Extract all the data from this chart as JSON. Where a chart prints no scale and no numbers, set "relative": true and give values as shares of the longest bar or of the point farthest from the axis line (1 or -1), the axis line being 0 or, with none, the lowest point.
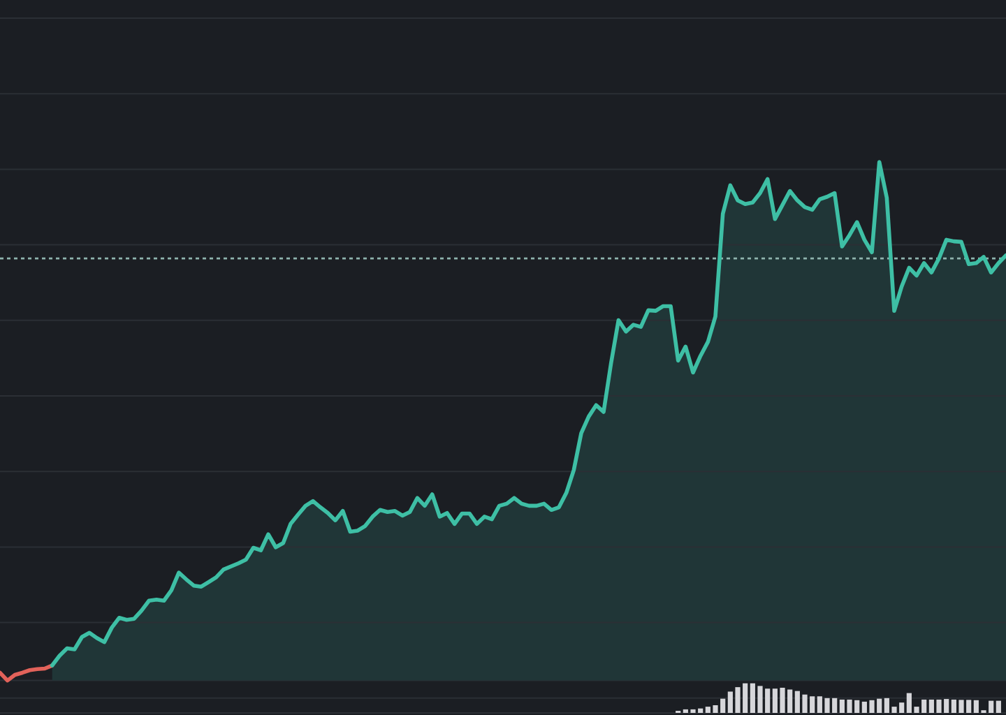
{
  "chart_data": [
    {
      "type": "line",
      "relative": true,
      "grid": "y",
      "categories": [
        null,
        null,
        null,
        null,
        null,
        null,
        null,
        null,
        null,
        null,
        null,
        null,
        null,
        null,
        null,
        null,
        null,
        null,
        null,
        null,
        null,
        null,
        null,
        null,
        null,
        null,
        null,
        null,
        null,
        null,
        null,
        null,
        null,
        null,
        null,
        null,
        null,
        null,
        null,
        null,
        null,
        null,
        null,
        null,
        null,
        null,
        null,
        null,
        null,
        null,
        null,
        null,
        null,
        null,
        null,
        null,
        null,
        null,
        null,
        null,
        null,
        null,
        null,
        null,
        null,
        null,
        null,
        null,
        null,
        null,
        null,
        null,
        null,
        null,
        null,
        null,
        null,
        null,
        null,
        null,
        null,
        null,
        null,
        null,
        null,
        null,
        null,
        null,
        null,
        null,
        null,
        null,
        null,
        null,
        null,
        null,
        null,
        null,
        null,
        null,
        null,
        null,
        null,
        null,
        null,
        null,
        null,
        null,
        null,
        null,
        null,
        null,
        null,
        null,
        null,
        null,
        null,
        null,
        null,
        null,
        null,
        null,
        null,
        null,
        null,
        null,
        null,
        null,
        null,
        null,
        null,
        null,
        null,
        null,
        null,
        null
      ],
      "series": [
        {
          "type": "line",
          "color": "#e2625a",
          "values": [
            0.015,
            0,
            0.011,
            0.015,
            0.02,
            0.022,
            0.023,
            0.029,
            null,
            null,
            null,
            null,
            null,
            null,
            null,
            null,
            null,
            null,
            null,
            null,
            null,
            null,
            null,
            null,
            null,
            null,
            null,
            null,
            null,
            null,
            null,
            null,
            null,
            null,
            null,
            null,
            null,
            null,
            null,
            null,
            null,
            null,
            null,
            null,
            null,
            null,
            null,
            null,
            null,
            null,
            null,
            null,
            null,
            null,
            null,
            null,
            null,
            null,
            null,
            null,
            null,
            null,
            null,
            null,
            null,
            null,
            null,
            null,
            null,
            null,
            null,
            null,
            null,
            null,
            null,
            null,
            null,
            null,
            null,
            null,
            null,
            null,
            null,
            null,
            null,
            null,
            null,
            null,
            null,
            null,
            null,
            null,
            null,
            null,
            null,
            null,
            null,
            null,
            null,
            null,
            null,
            null,
            null,
            null,
            null,
            null,
            null,
            null,
            null,
            null,
            null,
            null,
            null,
            null,
            null,
            null,
            null,
            null,
            null,
            null,
            null,
            null,
            null,
            null,
            null,
            null,
            null,
            null,
            null,
            null,
            null,
            null,
            null,
            null,
            null,
            null
          ]
        },
        {
          "type": "area",
          "color": "#3ebfa5",
          "values": [
            null,
            null,
            null,
            null,
            null,
            null,
            null,
            0.029,
            0.048,
            0.062,
            0.06,
            0.084,
            0.092,
            0.082,
            0.074,
            0.102,
            0.121,
            0.117,
            0.119,
            0.135,
            0.154,
            0.156,
            0.154,
            0.174,
            0.208,
            0.195,
            0.183,
            0.181,
            0.19,
            0.199,
            0.214,
            0.22,
            0.226,
            0.233,
            0.256,
            0.251,
            0.282,
            0.257,
            0.265,
            0.302,
            0.32,
            0.337,
            0.346,
            0.334,
            0.323,
            0.309,
            0.327,
            0.287,
            0.289,
            0.298,
            0.316,
            0.329,
            0.325,
            0.327,
            0.318,
            0.325,
            0.352,
            0.337,
            0.359,
            0.316,
            0.323,
            0.302,
            0.322,
            0.322,
            0.302,
            0.316,
            0.311,
            0.337,
            0.341,
            0.352,
            0.341,
            0.337,
            0.337,
            0.341,
            0.329,
            0.334,
            0.362,
            0.406,
            0.477,
            0.509,
            0.531,
            0.518,
            0.612,
            0.695,
            0.673,
            0.686,
            0.682,
            0.714,
            0.713,
            0.722,
            0.722,
            0.617,
            0.644,
            0.594,
            0.626,
            0.653,
            0.702,
            0.9,
            0.955,
            0.926,
            0.919,
            0.922,
            0.94,
            0.967,
            0.89,
            0.917,
            0.944,
            0.926,
            0.913,
            0.908,
            0.928,
            0.933,
            0.94,
            0.837,
            0.859,
            0.884,
            0.85,
            0.826,
            1,
            0.931,
            0.713,
            0.76,
            0.796,
            0.781,
            0.805,
            0.787,
            0.814,
            0.85,
            0.847,
            0.846,
            0.803,
            0.805,
            0.817,
            0.787,
            0.805,
            0.82
          ]
        }
      ],
      "ref_lines": [
        {
          "axis": "y",
          "value": 0.814,
          "color": "#8fb4ae",
          "line_style": "dashed"
        }
      ]
    },
    {
      "type": "bar",
      "relative": true,
      "categories": [
        null,
        null,
        null,
        null,
        null,
        null,
        null,
        null,
        null,
        null,
        null,
        null,
        null,
        null,
        null,
        null,
        null,
        null,
        null,
        null,
        null,
        null,
        null,
        null,
        null,
        null,
        null,
        null,
        null,
        null,
        null,
        null,
        null,
        null,
        null,
        null,
        null,
        null,
        null,
        null,
        null,
        null,
        null,
        null,
        null,
        null,
        null,
        null,
        null,
        null,
        null,
        null,
        null,
        null,
        null,
        null,
        null,
        null,
        null,
        null,
        null,
        null,
        null,
        null,
        null,
        null,
        null,
        null,
        null,
        null,
        null,
        null,
        null,
        null,
        null,
        null,
        null,
        null,
        null,
        null,
        null,
        null,
        null,
        null,
        null,
        null,
        null,
        null,
        null,
        null,
        null,
        null,
        null,
        null,
        null,
        null,
        null,
        null,
        null,
        null,
        null,
        null,
        null,
        null,
        null,
        null,
        null,
        null,
        null,
        null,
        null,
        null,
        null,
        null,
        null,
        null,
        null,
        null,
        null,
        null,
        null,
        null,
        null,
        null,
        null,
        null,
        null,
        null,
        null,
        null,
        null,
        null,
        null,
        null,
        null,
        null
      ],
      "values": [
        null,
        null,
        null,
        null,
        null,
        null,
        null,
        null,
        null,
        null,
        null,
        null,
        null,
        null,
        null,
        null,
        null,
        null,
        null,
        null,
        null,
        null,
        null,
        null,
        null,
        null,
        null,
        null,
        null,
        null,
        null,
        null,
        null,
        null,
        null,
        null,
        null,
        null,
        null,
        null,
        null,
        null,
        null,
        null,
        null,
        null,
        null,
        null,
        null,
        null,
        null,
        null,
        null,
        null,
        null,
        null,
        null,
        null,
        null,
        null,
        null,
        null,
        null,
        null,
        null,
        null,
        null,
        null,
        null,
        null,
        null,
        null,
        null,
        null,
        null,
        null,
        null,
        null,
        null,
        null,
        null,
        null,
        null,
        null,
        null,
        null,
        null,
        null,
        null,
        null,
        null,
        0.07,
        0.12,
        0.12,
        0.15,
        0.21,
        0.26,
        0.48,
        0.72,
        0.87,
        1,
        1,
        0.91,
        0.82,
        0.82,
        0.85,
        0.79,
        0.74,
        0.62,
        0.56,
        0.56,
        0.5,
        0.5,
        0.45,
        0.45,
        0.43,
        0.38,
        0.43,
        0.48,
        0.5,
        0.21,
        0.35,
        0.67,
        0.21,
        0.45,
        0.45,
        0.45,
        0.47,
        0.45,
        0.44,
        0.44,
        0.43,
        0.09,
        0.41,
        0.41,
        null
      ],
      "color": "#d6d6da"
    }
  ]
}
